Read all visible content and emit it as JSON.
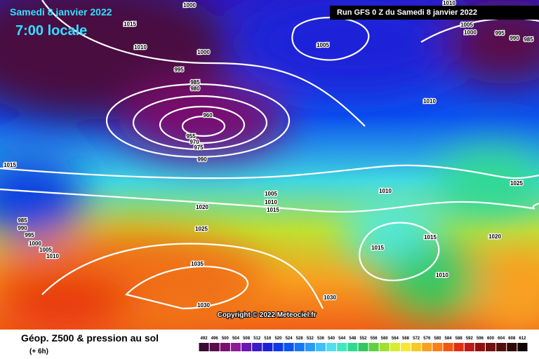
{
  "header": {
    "date": "Samedi 8 janvier 2022",
    "time": "7:00 locale",
    "run": "Run GFS 0 Z du Samedi 8 janvier 2022"
  },
  "isobar_labels": [
    "1000",
    "1015",
    "1010",
    "1000",
    "995",
    "985",
    "980",
    "960",
    "955",
    "970",
    "975",
    "990",
    "1015",
    "1005",
    "1010",
    "1010",
    "1005",
    "1000",
    "995",
    "990",
    "985",
    "1025",
    "1010",
    "1005",
    "1010",
    "1015",
    "1020",
    "1025",
    "1015",
    "1015",
    "1020",
    "1010",
    "1035",
    "1030",
    "1030",
    "985",
    "990",
    "995",
    "1000",
    "1005",
    "1010"
  ],
  "footer": {
    "title": "Géop. Z500 & pression au sol",
    "subtitle": "(+ 6h)",
    "copyright": "Copyright © 2022 Meteociel.fr"
  },
  "colorbar": {
    "values": [
      492,
      496,
      500,
      504,
      508,
      512,
      516,
      520,
      524,
      528,
      532,
      536,
      540,
      544,
      548,
      552,
      556,
      560,
      564,
      568,
      572,
      576,
      580,
      584,
      588,
      592,
      596,
      600,
      604,
      608,
      612
    ],
    "colors": [
      "#3a0a30",
      "#5a0d4a",
      "#7a1070",
      "#8e1a9a",
      "#6a18b0",
      "#3a1cc8",
      "#1a22d8",
      "#1038e8",
      "#0a55f0",
      "#1478f5",
      "#2a9af8",
      "#40c0fa",
      "#50e0f0",
      "#40e8c0",
      "#30d890",
      "#30c860",
      "#60d040",
      "#a0e030",
      "#d8ec30",
      "#f8e830",
      "#f8c828",
      "#f8a020",
      "#f88018",
      "#f05814",
      "#e03010",
      "#c01818",
      "#901010",
      "#701010",
      "#501008",
      "#300808",
      "#100404"
    ]
  }
}
